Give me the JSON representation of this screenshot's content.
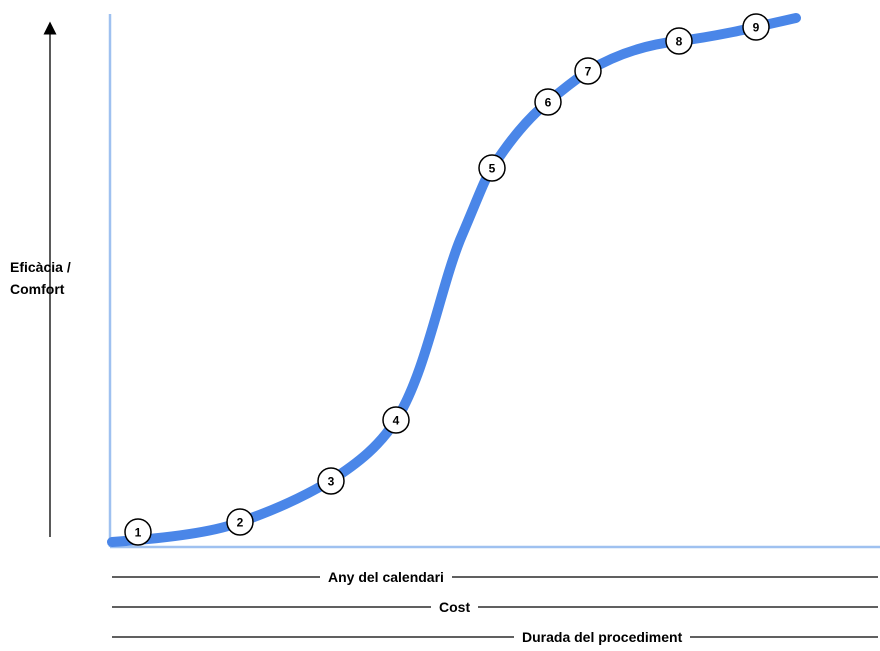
{
  "y_axis_label_line1": "Eficàcia /",
  "y_axis_label_line2": "Comfort",
  "x_axis_labels": [
    "Any del calendari",
    "Cost",
    "Durada del procediment"
  ],
  "curve_color": "#4a86e8",
  "axis_color": "#9fc1f0",
  "points": [
    "1",
    "2",
    "3",
    "4",
    "5",
    "6",
    "7",
    "8",
    "9"
  ]
}
